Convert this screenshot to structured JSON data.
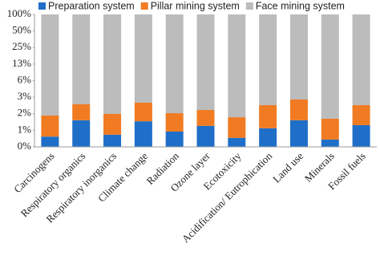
{
  "chart_data": {
    "type": "stacked_bar",
    "categories": [
      "Carcinogens",
      "Respiratory organics",
      "Respiratory inorganics",
      "Climate change",
      "Radiation",
      "Ozone layer",
      "Ecotoxicity",
      "Acidification/ Eutrophication",
      "Land use",
      "Minerals",
      "Fossil fuels"
    ],
    "series": [
      {
        "name": "Preparation system",
        "color": "#1f6fc9",
        "values": [
          0.6,
          1.19,
          0.65,
          1.14,
          0.74,
          0.94,
          0.57,
          0.85,
          1.19,
          0.53,
          0.97
        ]
      },
      {
        "name": "Pillar mining system",
        "color": "#f07b22",
        "values": [
          0.85,
          1.13,
          0.9,
          1.34,
          0.86,
          0.89,
          0.78,
          1.39,
          1.65,
          0.74,
          1.27
        ]
      },
      {
        "name": "Face mining system",
        "color": "#bcbcbc",
        "values": [
          98.55,
          97.68,
          98.45,
          97.52,
          98.4,
          98.17,
          98.65,
          97.76,
          97.16,
          98.73,
          97.76
        ]
      }
    ],
    "ylim": [
      0.390625,
      100
    ],
    "log_base": 2,
    "yticks": [
      {
        "value": 0.390625,
        "label": "0%"
      },
      {
        "value": 0.78125,
        "label": "1%"
      },
      {
        "value": 1.5625,
        "label": "2%"
      },
      {
        "value": 3.125,
        "label": "3%"
      },
      {
        "value": 6.25,
        "label": "6%"
      },
      {
        "value": 12.5,
        "label": "13%"
      },
      {
        "value": 25,
        "label": "25%"
      },
      {
        "value": 50,
        "label": "50%"
      },
      {
        "value": 100,
        "label": "100%"
      }
    ],
    "legend": "top"
  }
}
